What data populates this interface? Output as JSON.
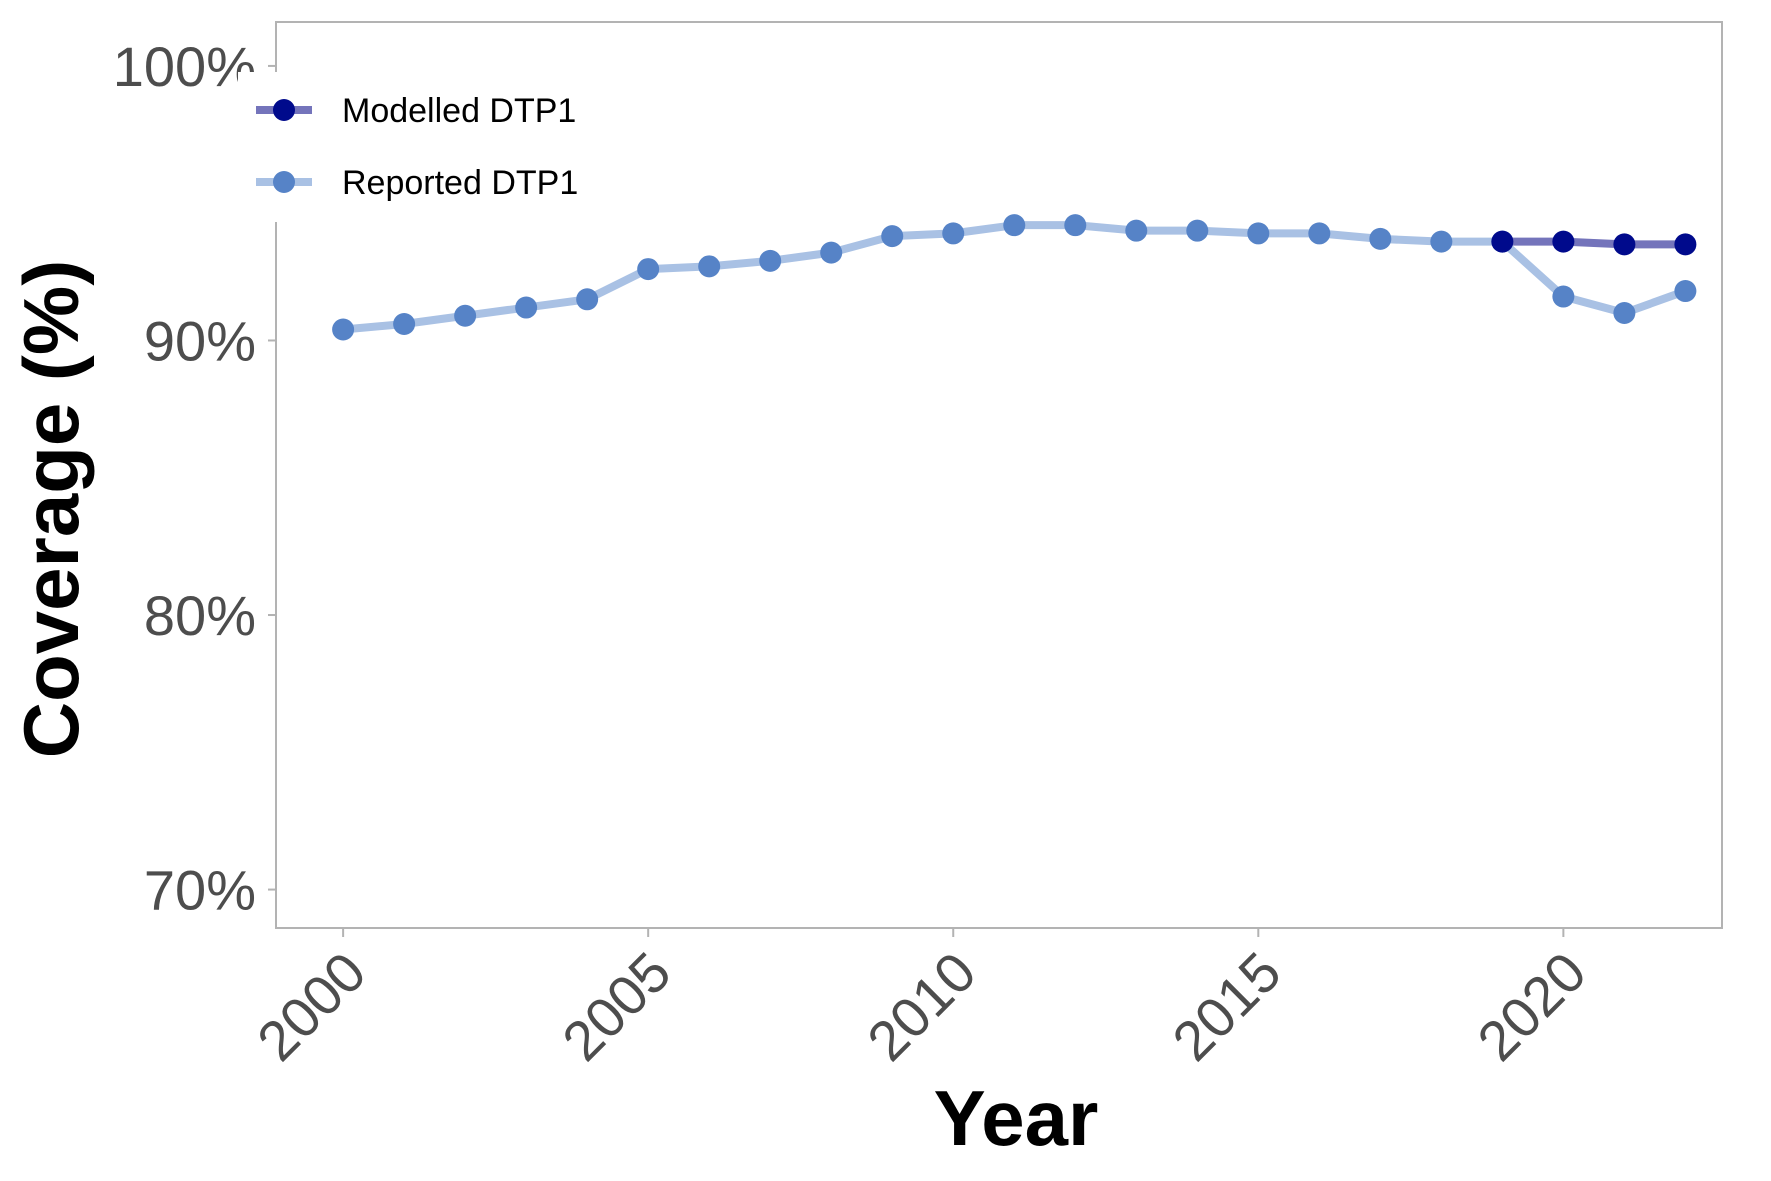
{
  "chart_data": {
    "type": "line",
    "xlabel": "Year",
    "ylabel": "Coverage (%)",
    "x_ticks": [
      2000,
      2005,
      2010,
      2015,
      2020
    ],
    "x_tick_labels": [
      "2000",
      "2005",
      "2010",
      "2015",
      "2020"
    ],
    "y_ticks": [
      70,
      80,
      90,
      100
    ],
    "y_tick_labels": [
      "70%",
      "80%",
      "90%",
      "100%"
    ],
    "xlim": [
      1998.9,
      2022.6
    ],
    "ylim": [
      68.6,
      101.6
    ],
    "grid": false,
    "legend_position": "top-left",
    "series": [
      {
        "name": "Modelled DTP1",
        "line_color": "#7474bb",
        "point_color": "#000a8c",
        "x": [
          2019,
          2020,
          2021,
          2022
        ],
        "y": [
          93.6,
          93.6,
          93.5,
          93.5
        ]
      },
      {
        "name": "Reported DTP1",
        "line_color": "#a9c1e4",
        "point_color": "#5683c7",
        "x": [
          2000,
          2001,
          2002,
          2003,
          2004,
          2005,
          2006,
          2007,
          2008,
          2009,
          2010,
          2011,
          2012,
          2013,
          2014,
          2015,
          2016,
          2017,
          2018,
          2019,
          2020,
          2021,
          2022
        ],
        "y": [
          90.4,
          90.6,
          90.9,
          91.2,
          91.5,
          92.6,
          92.7,
          92.9,
          93.2,
          93.8,
          93.9,
          94.2,
          94.2,
          94.0,
          94.0,
          93.9,
          93.9,
          93.7,
          93.6,
          93.6,
          91.6,
          91.0,
          91.8
        ]
      }
    ]
  }
}
